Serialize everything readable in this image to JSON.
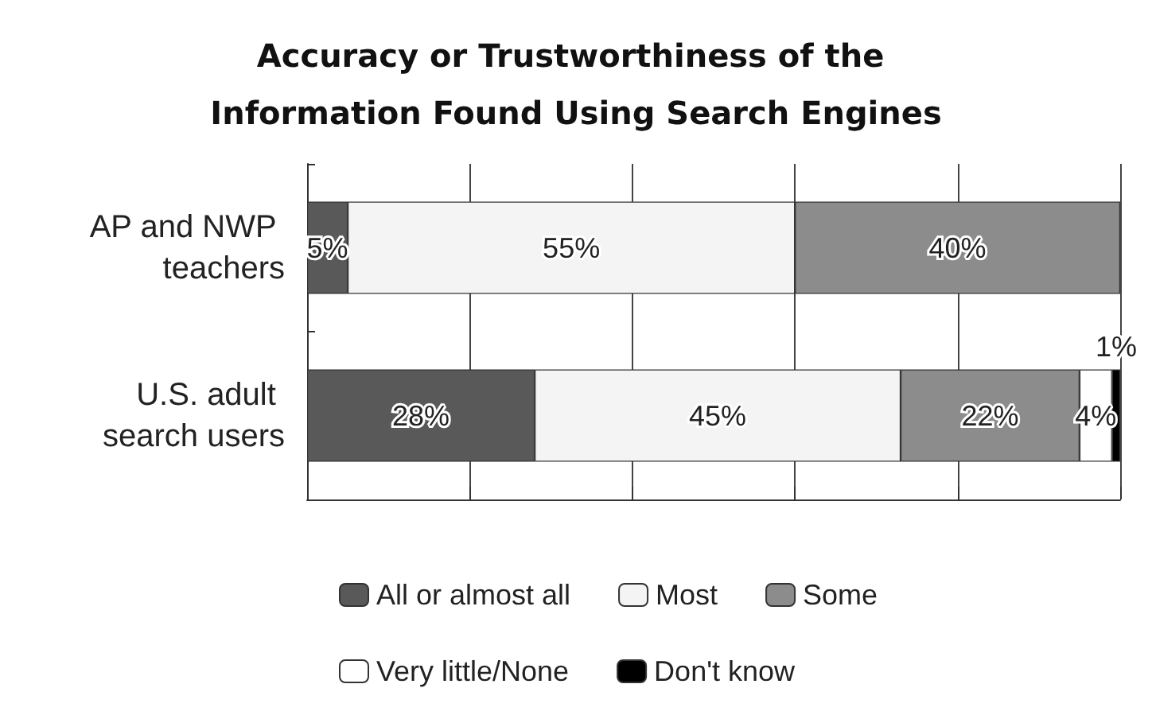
{
  "chart_data": {
    "type": "bar",
    "orientation": "horizontal",
    "stacked": true,
    "title": "Accuracy or Trustworthiness of the Information Found Using Search Engines",
    "categories": [
      "AP and NWP teachers",
      "U.S. adult search users"
    ],
    "series": [
      {
        "name": "All or almost all",
        "color": "#595959",
        "values": [
          5,
          28
        ],
        "value_labels": [
          "5%",
          "28%"
        ]
      },
      {
        "name": "Most",
        "color": "#f4f4f4",
        "values": [
          55,
          45
        ],
        "value_labels": [
          "55%",
          "45%"
        ]
      },
      {
        "name": "Some",
        "color": "#8c8c8c",
        "values": [
          40,
          22
        ],
        "value_labels": [
          "40%",
          "22%"
        ]
      },
      {
        "name": "Very little/None",
        "color": "#ffffff",
        "values": [
          null,
          4
        ],
        "value_labels": [
          null,
          "4%"
        ]
      },
      {
        "name": "Don't know",
        "color": "#000000",
        "values": [
          null,
          1
        ],
        "value_labels": [
          null,
          "1%"
        ]
      }
    ],
    "xlim": [
      0,
      100
    ],
    "tick_labels": "y",
    "grid": "x",
    "legend": "bottom"
  }
}
